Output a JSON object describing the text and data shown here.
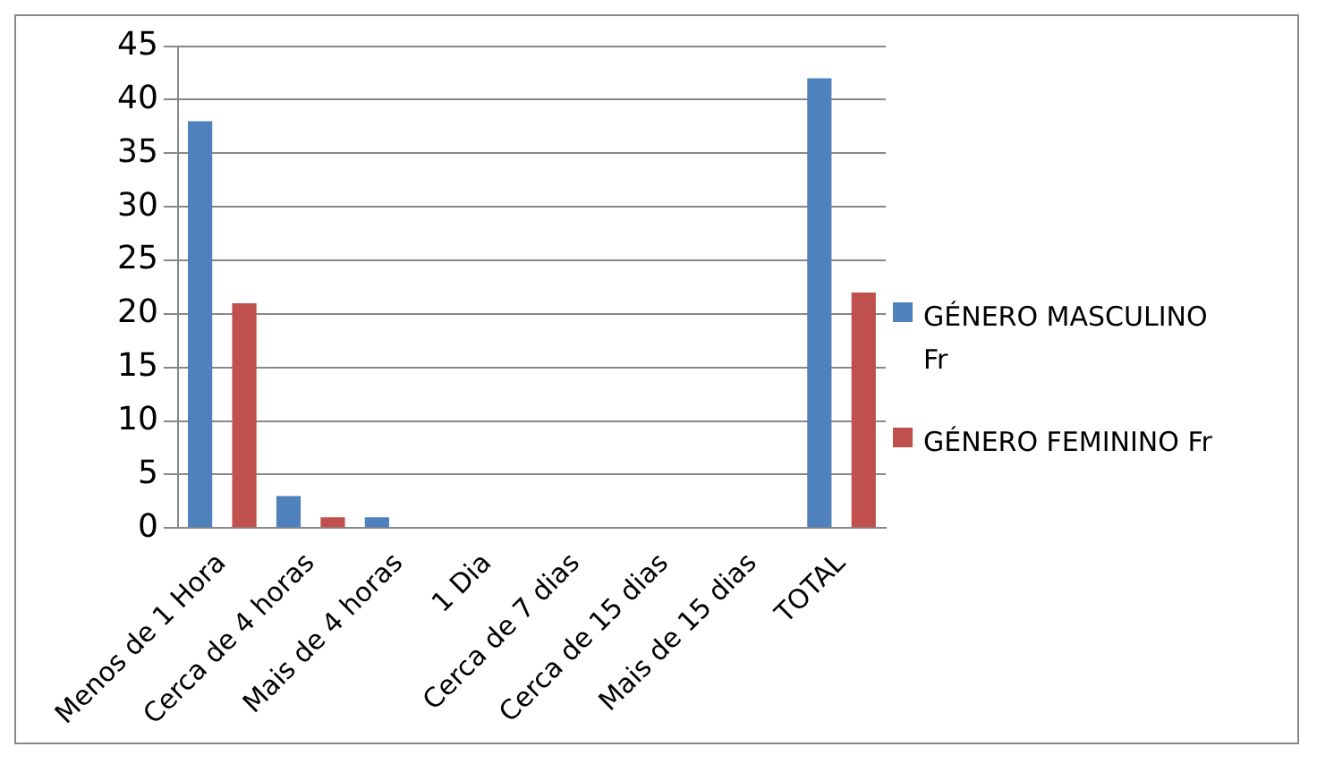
{
  "chart_data": {
    "type": "bar",
    "categories": [
      "Menos de 1 Hora",
      "Cerca de 4 horas",
      "Mais de 4 horas",
      "1 Dia",
      "Cerca de 7 dias",
      "Cerca de 15 dias",
      "Mais de 15 dias",
      "TOTAL"
    ],
    "series": [
      {
        "name": "GÉNERO MASCULINO Fr",
        "color": "#4f81bd",
        "values": [
          38,
          3,
          1,
          0,
          0,
          0,
          0,
          42
        ]
      },
      {
        "name": "GÉNERO FEMININO Fr",
        "color": "#c0504d",
        "values": [
          21,
          1,
          0,
          0,
          0,
          0,
          0,
          22
        ]
      }
    ],
    "ylim": [
      0,
      45
    ],
    "yticks": [
      0,
      5,
      10,
      15,
      20,
      25,
      30,
      35,
      40,
      45
    ],
    "grid": "y",
    "legend": "right"
  }
}
